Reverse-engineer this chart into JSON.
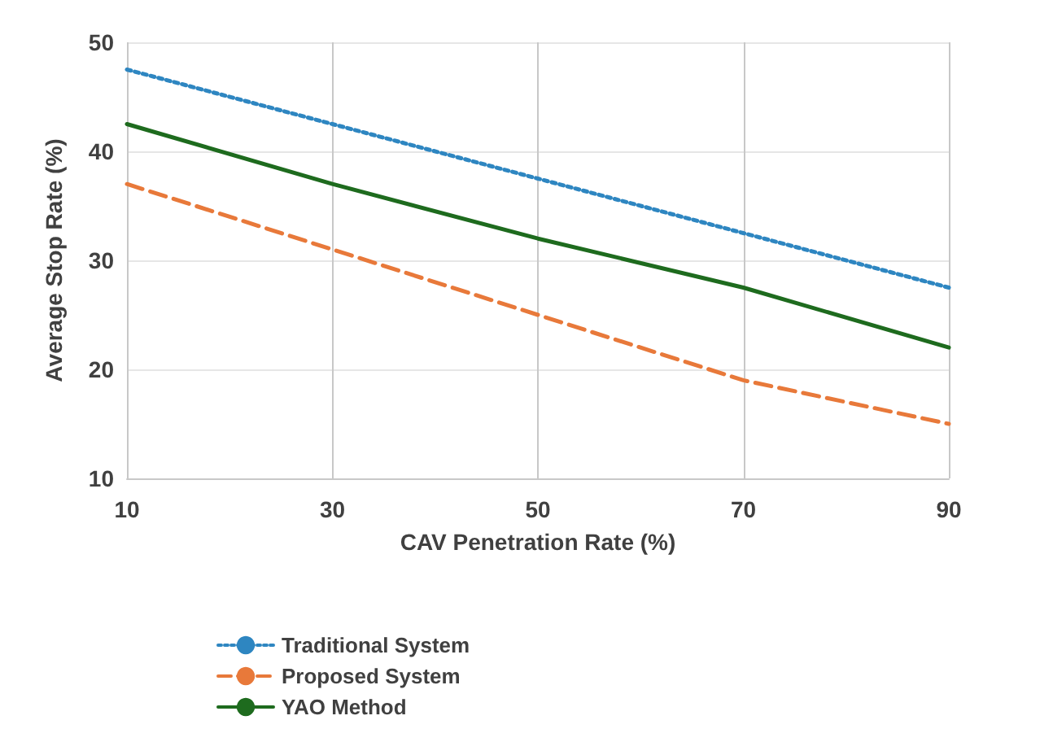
{
  "chart_data": {
    "type": "line",
    "xlabel": "CAV Penetration Rate (%)",
    "ylabel": "Average Stop Rate (%)",
    "x": [
      10,
      30,
      50,
      70,
      90
    ],
    "xlim": [
      10,
      90
    ],
    "xticks": [
      10,
      30,
      50,
      70,
      90
    ],
    "ylim": [
      10,
      50
    ],
    "yticks": [
      10,
      20,
      30,
      40,
      50
    ],
    "grid": true,
    "legend": "bottom left",
    "marker": "none",
    "series": [
      {
        "name": "Traditional System",
        "color": "#2e86c1",
        "line_style": "dotted",
        "values": [
          47.5,
          42.5,
          37.5,
          32.5,
          27.5
        ]
      },
      {
        "name": "Proposed System",
        "color": "#e8793a",
        "line_style": "dashed",
        "values": [
          37,
          31,
          25,
          19,
          15
        ]
      },
      {
        "name": "YAO Method",
        "color": "#1e6b1e",
        "line_style": "solid",
        "values": [
          42.5,
          37,
          32,
          27.5,
          22
        ]
      }
    ]
  }
}
